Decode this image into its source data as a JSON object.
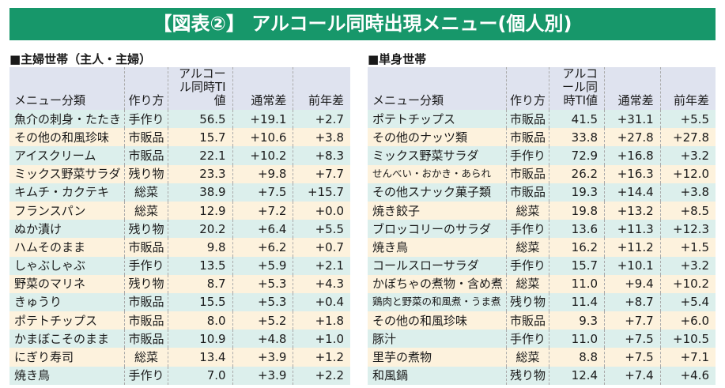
{
  "title": "【図表②】 アルコール同時出現メニュー(個人別)",
  "colors": {
    "banner": "#17976a",
    "header": "#dfe3ef",
    "row_a": "#dcefec",
    "row_b": "#fdf2dd"
  },
  "headers": [
    "メニュー分類",
    "作り方",
    "アルコール同時TI値",
    "通常差",
    "前年差"
  ],
  "left": {
    "title": "■主婦世帯（主人・主婦）",
    "rows": [
      [
        "魚介の刺身・たたき",
        "手作り",
        "56.5",
        "+19.1",
        "+2.7"
      ],
      [
        "その他の和風珍味",
        "市販品",
        "15.7",
        "+10.6",
        "+3.8"
      ],
      [
        "アイスクリーム",
        "市販品",
        "22.1",
        "+10.2",
        "+8.3"
      ],
      [
        "ミックス野菜サラダ",
        "残り物",
        "23.3",
        "+9.8",
        "+7.7"
      ],
      [
        "キムチ・カクテキ",
        "総菜",
        "38.9",
        "+7.5",
        "+15.7"
      ],
      [
        "フランスパン",
        "総菜",
        "12.9",
        "+7.2",
        "+0.0"
      ],
      [
        "ぬか漬け",
        "残り物",
        "20.2",
        "+6.4",
        "+5.5"
      ],
      [
        "ハムそのまま",
        "市販品",
        "9.8",
        "+6.2",
        "+0.7"
      ],
      [
        "しゃぶしゃぶ",
        "手作り",
        "13.5",
        "+5.9",
        "+2.1"
      ],
      [
        "野菜のマリネ",
        "残り物",
        "8.7",
        "+5.3",
        "+4.3"
      ],
      [
        "きゅうり",
        "市販品",
        "15.5",
        "+5.3",
        "+0.4"
      ],
      [
        "ポテトチップス",
        "市販品",
        "8.0",
        "+5.2",
        "+1.8"
      ],
      [
        "かまぼこそのまま",
        "市販品",
        "10.9",
        "+4.8",
        "+1.0"
      ],
      [
        "にぎり寿司",
        "総菜",
        "13.4",
        "+3.9",
        "+1.2"
      ],
      [
        "焼き鳥",
        "手作り",
        "7.0",
        "+3.9",
        "+2.2"
      ]
    ]
  },
  "right": {
    "title": "■単身世帯",
    "rows": [
      [
        "ポテトチップス",
        "市販品",
        "41.5",
        "+31.1",
        "+5.5"
      ],
      [
        "その他のナッツ類",
        "市販品",
        "33.8",
        "+27.8",
        "+27.8"
      ],
      [
        "ミックス野菜サラダ",
        "手作り",
        "72.9",
        "+16.8",
        "+3.2"
      ],
      [
        "せんべい・おかき・あられ",
        "市販品",
        "26.2",
        "+16.3",
        "+12.0"
      ],
      [
        "その他スナック菓子類",
        "市販品",
        "19.3",
        "+14.4",
        "+3.8"
      ],
      [
        "焼き餃子",
        "総菜",
        "19.8",
        "+13.2",
        "+8.5"
      ],
      [
        "ブロッコリーのサラダ",
        "手作り",
        "13.6",
        "+11.3",
        "+12.3"
      ],
      [
        "焼き鳥",
        "総菜",
        "16.2",
        "+11.2",
        "+1.5"
      ],
      [
        "コールスローサラダ",
        "手作り",
        "15.7",
        "+10.1",
        "+3.2"
      ],
      [
        "かぼちゃの煮物・含め煮",
        "総菜",
        "11.0",
        "+9.4",
        "+10.2"
      ],
      [
        "鶏肉と野菜の和風煮・うま煮",
        "残り物",
        "11.4",
        "+8.7",
        "+5.4"
      ],
      [
        "その他の和風珍味",
        "市販品",
        "9.3",
        "+7.7",
        "+6.0"
      ],
      [
        "豚汁",
        "手作り",
        "11.0",
        "+7.5",
        "+10.5"
      ],
      [
        "里芋の煮物",
        "総菜",
        "8.8",
        "+7.5",
        "+7.1"
      ],
      [
        "和風鍋",
        "残り物",
        "12.4",
        "+7.4",
        "+4.6"
      ]
    ]
  }
}
